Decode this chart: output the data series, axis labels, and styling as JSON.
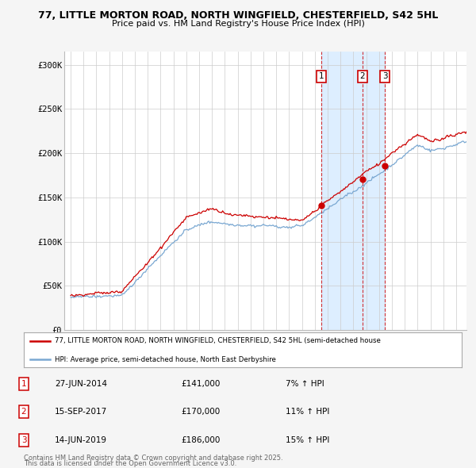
{
  "title_line1": "77, LITTLE MORTON ROAD, NORTH WINGFIELD, CHESTERFIELD, S42 5HL",
  "title_line2": "Price paid vs. HM Land Registry's House Price Index (HPI)",
  "ylabel_ticks": [
    "£0",
    "£50K",
    "£100K",
    "£150K",
    "£200K",
    "£250K",
    "£300K"
  ],
  "ytick_values": [
    0,
    50000,
    100000,
    150000,
    200000,
    250000,
    300000
  ],
  "ylim": [
    0,
    315000
  ],
  "xlim_start": 1994.5,
  "xlim_end": 2025.8,
  "red_line_label": "77, LITTLE MORTON ROAD, NORTH WINGFIELD, CHESTERFIELD, S42 5HL (semi-detached house",
  "blue_line_label": "HPI: Average price, semi-detached house, North East Derbyshire",
  "sale_markers": [
    {
      "label": "1",
      "date_str": "27-JUN-2014",
      "date_x": 2014.49,
      "price": 141000,
      "pct": "7%",
      "direction": "↑"
    },
    {
      "label": "2",
      "date_str": "15-SEP-2017",
      "date_x": 2017.71,
      "price": 170000,
      "pct": "11%",
      "direction": "↑"
    },
    {
      "label": "3",
      "date_str": "14-JUN-2019",
      "date_x": 2019.45,
      "price": 186000,
      "pct": "15%",
      "direction": "↑"
    }
  ],
  "shade_start": 2014.49,
  "shade_end": 2019.45,
  "footer_line1": "Contains HM Land Registry data © Crown copyright and database right 2025.",
  "footer_line2": "This data is licensed under the Open Government Licence v3.0.",
  "bg_color": "#f5f5f5",
  "plot_bg_color": "#ffffff",
  "grid_color": "#cccccc",
  "red_color": "#cc0000",
  "blue_color": "#7aa8d2",
  "shade_color": "#ddeeff"
}
